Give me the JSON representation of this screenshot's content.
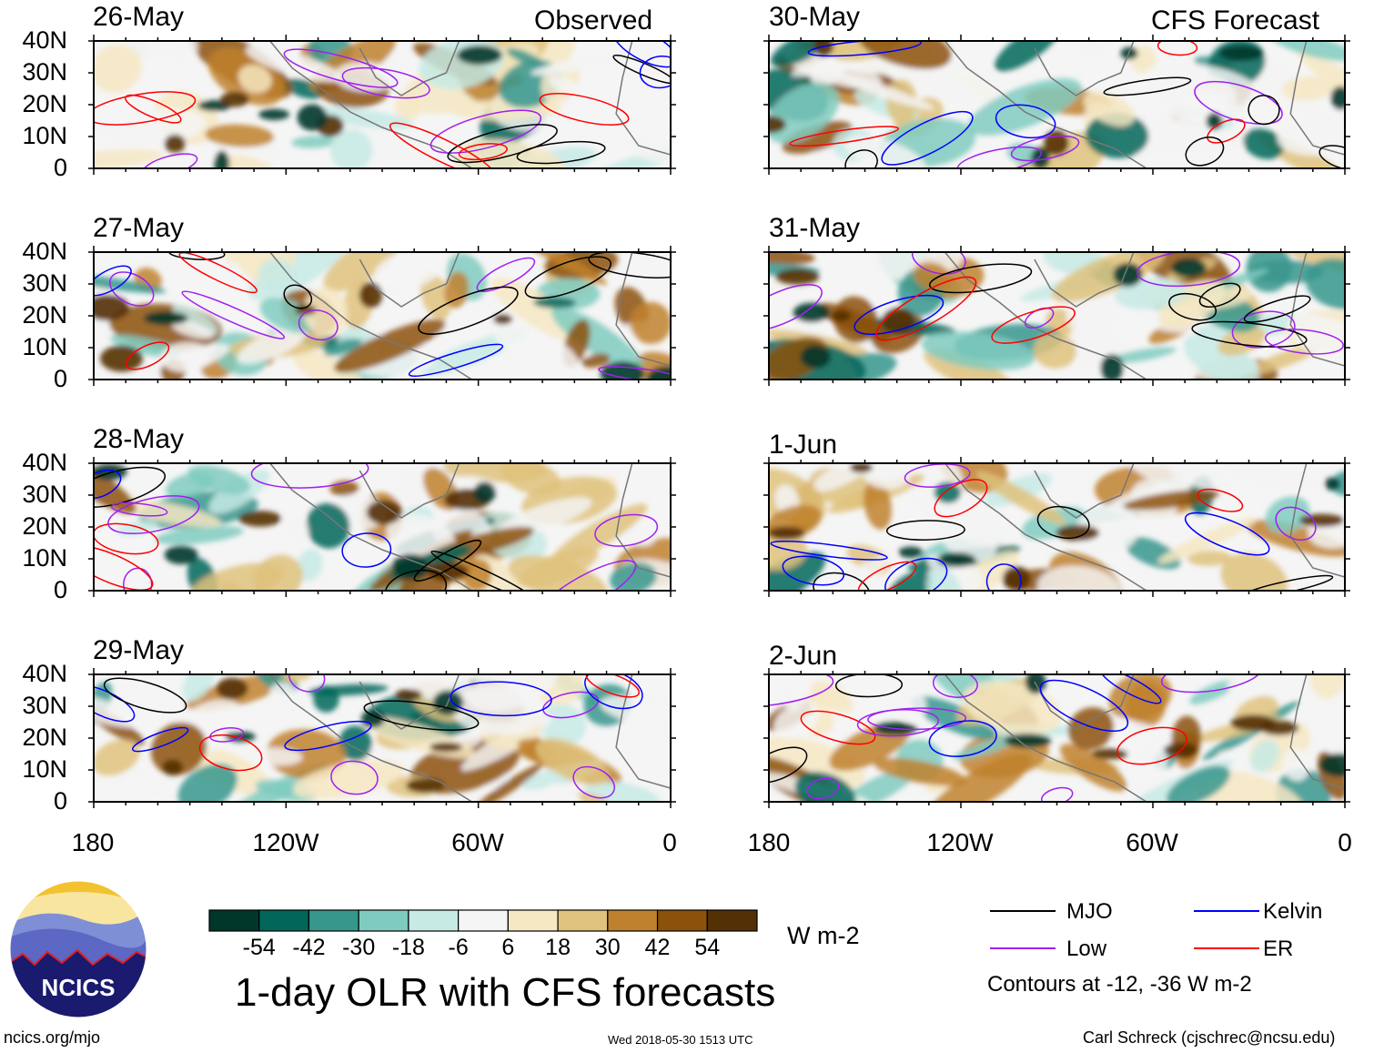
{
  "chart_data": {
    "type": "heatmap",
    "title": "1-day OLR with CFS forecasts",
    "units": "W m-2",
    "column_headers": [
      "Observed",
      "CFS Forecast"
    ],
    "panels_observed": [
      "26-May",
      "27-May",
      "28-May",
      "29-May"
    ],
    "panels_forecast": [
      "30-May",
      "31-May",
      "1-Jun",
      "2-Jun"
    ],
    "x_ticks": [
      "180",
      "120W",
      "60W",
      "0"
    ],
    "y_ticks": [
      "40N",
      "30N",
      "20N",
      "10N",
      "0"
    ],
    "xlim_lon": [
      -180,
      0
    ],
    "ylim_lat": [
      0,
      40
    ],
    "colorbar": {
      "ticks": [
        "-54",
        "-42",
        "-30",
        "-18",
        "-6",
        "6",
        "18",
        "30",
        "42",
        "54"
      ],
      "colors": [
        "#01362b",
        "#02665a",
        "#37978d",
        "#80cbbf",
        "#c7eae5",
        "#f5f5f5",
        "#f6e8c3",
        "#dfc27d",
        "#bf812d",
        "#8c510a",
        "#543005"
      ]
    },
    "legend": {
      "items": [
        {
          "label": "MJO",
          "color": "#000000"
        },
        {
          "label": "Kelvin",
          "color": "#0000ff"
        },
        {
          "label": "Low",
          "color": "#a020f0"
        },
        {
          "label": "ER",
          "color": "#ff0000"
        }
      ],
      "note": "Contours at -12, -36 W m-2"
    }
  },
  "footer": {
    "logo_text": "NCICS",
    "url": "ncics.org/mjo",
    "timestamp": "Wed 2018-05-30 1513 UTC",
    "credit": "Carl Schreck (cjschrec@ncsu.edu)"
  }
}
